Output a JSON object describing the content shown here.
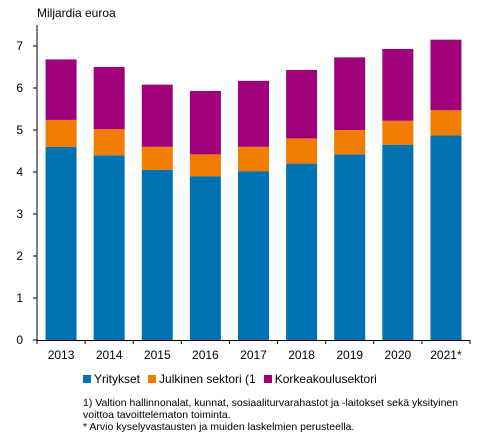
{
  "chart_data": {
    "type": "bar",
    "stacked": true,
    "ylabel": "Miljardia euroa",
    "ylim": [
      0,
      7.5
    ],
    "yticks": [
      0,
      1,
      2,
      3,
      4,
      5,
      6,
      7
    ],
    "grid": false,
    "legend_position": "bottom",
    "categories": [
      "2013",
      "2014",
      "2015",
      "2016",
      "2017",
      "2018",
      "2019",
      "2020",
      "2021*"
    ],
    "series": [
      {
        "name": "Yritykset",
        "color": "#0072b2",
        "values": [
          4.6,
          4.4,
          4.05,
          3.9,
          4.02,
          4.2,
          4.42,
          4.65,
          4.87
        ]
      },
      {
        "name": "Julkinen sektori (1",
        "color": "#f07d00",
        "values": [
          0.64,
          0.62,
          0.55,
          0.52,
          0.58,
          0.6,
          0.58,
          0.57,
          0.6
        ]
      },
      {
        "name": "Korkeakoulusektori",
        "color": "#a0007a",
        "values": [
          1.44,
          1.48,
          1.48,
          1.51,
          1.57,
          1.63,
          1.73,
          1.71,
          1.68
        ]
      }
    ]
  },
  "footnotes": [
    "1) Valtion hallinnonalat,  kunnat,  sosiaaliturvarahastot ja -laitokset sekä yksityinen voittoa tavoittelematon toiminta.",
    "* Arvio kyselyvastausten ja muiden laskelmien perusteella."
  ]
}
